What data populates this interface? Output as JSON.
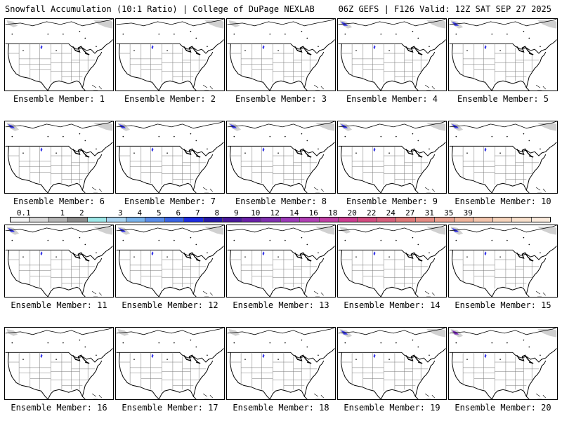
{
  "header": {
    "left": "Snowfall Accumulation (10:1 Ratio) | College of DuPage NEXLAB",
    "right": "06Z GEFS | F126 Valid: 12Z SAT SEP 27 2025"
  },
  "colors": {
    "map_lines": "#000000",
    "state_lines": "#777777",
    "snow_light": "#d0d0d0",
    "snow_blue": "#3a3ae8",
    "snow_purple": "#7a2ab8"
  },
  "legend": {
    "ticks": [
      "0.1",
      "1",
      "2",
      "3",
      "4",
      "5",
      "6",
      "7",
      "8",
      "9",
      "10",
      "12",
      "14",
      "16",
      "18",
      "20",
      "22",
      "24",
      "27",
      "31",
      "35",
      "39"
    ],
    "colors": [
      "#f2f2f2",
      "#d8d8d8",
      "#b4b4b4",
      "#8c8c8c",
      "#9ee8e8",
      "#aad4f0",
      "#7ab4ec",
      "#5a8ce8",
      "#3a64e4",
      "#1e2ce0",
      "#281aa8",
      "#4a1a9c",
      "#6a20a8",
      "#8030b0",
      "#9c3ab8",
      "#b040b4",
      "#c040a4",
      "#cc3c90",
      "#d24c80",
      "#d6607c",
      "#de7878",
      "#e48c84",
      "#e8a090",
      "#eeb49c",
      "#f2c4ac",
      "#f6d4bc",
      "#f8e0cc",
      "#faeadc"
    ]
  },
  "members": [
    {
      "label": "Ensemble Member: 1",
      "snow": [
        "nw-light",
        "ne-light",
        "co-dot"
      ]
    },
    {
      "label": "Ensemble Member: 2",
      "snow": [
        "ne-light",
        "co-dot"
      ]
    },
    {
      "label": "Ensemble Member: 3",
      "snow": [
        "nw-light",
        "co-dot"
      ]
    },
    {
      "label": "Ensemble Member: 4",
      "snow": [
        "nw-blue",
        "ne-light",
        "co-dot"
      ]
    },
    {
      "label": "Ensemble Member: 5",
      "snow": [
        "nw-blue",
        "ne-light",
        "co-dot"
      ]
    },
    {
      "label": "Ensemble Member: 6",
      "snow": [
        "nw-blue",
        "ne-light",
        "co-dot"
      ]
    },
    {
      "label": "Ensemble Member: 7",
      "snow": [
        "nw-blue",
        "co-dot"
      ]
    },
    {
      "label": "Ensemble Member: 8",
      "snow": [
        "nw-blue",
        "ne-light",
        "co-dot"
      ]
    },
    {
      "label": "Ensemble Member: 9",
      "snow": [
        "nw-blue",
        "ne-light",
        "co-dot"
      ]
    },
    {
      "label": "Ensemble Member: 10",
      "snow": [
        "nw-blue",
        "ne-light",
        "co-dot"
      ]
    },
    {
      "label": "Ensemble Member: 11",
      "snow": [
        "nw-blue",
        "ne-light",
        "co-dot"
      ]
    },
    {
      "label": "Ensemble Member: 12",
      "snow": [
        "nw-blue",
        "ne-light",
        "co-dot"
      ]
    },
    {
      "label": "Ensemble Member: 13",
      "snow": [
        "ne-light",
        "co-dot"
      ]
    },
    {
      "label": "Ensemble Member: 14",
      "snow": [
        "nw-light",
        "ne-light",
        "co-dot"
      ]
    },
    {
      "label": "Ensemble Member: 15",
      "snow": [
        "nw-blue",
        "ne-light",
        "co-dot"
      ]
    },
    {
      "label": "Ensemble Member: 16",
      "snow": [
        "nw-light",
        "co-dot"
      ]
    },
    {
      "label": "Ensemble Member: 17",
      "snow": [
        "nw-light",
        "co-dot"
      ]
    },
    {
      "label": "Ensemble Member: 18",
      "snow": [
        "nw-light",
        "co-dot"
      ]
    },
    {
      "label": "Ensemble Member: 19",
      "snow": [
        "nw-blue",
        "ne-light",
        "co-dot"
      ]
    },
    {
      "label": "Ensemble Member: 20",
      "snow": [
        "nw-purple",
        "ne-light",
        "co-dot"
      ]
    }
  ]
}
